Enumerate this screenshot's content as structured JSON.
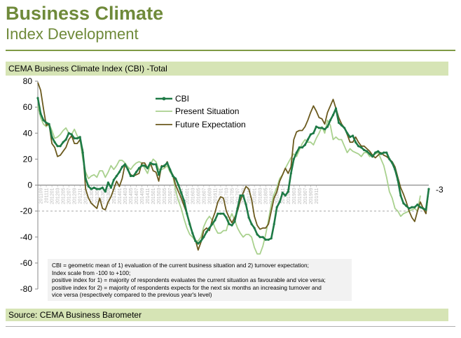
{
  "header": {
    "title": "Business Climate",
    "subtitle": "Index Development"
  },
  "chart_label": "CEMA Business Climate Index (CBI) -Total",
  "source": "Source: CEMA Business Barometer",
  "note_lines": [
    "CBI = geometric mean of 1) evaluation of the current business situation and 2) turnover expectation;",
    "Index scale from -100 to +100;",
    "positive index for 1) = majority of respondents evaluates the current situation as favourable and vice versa;",
    "positive index for 2) = majority of respondents expects for the next six months an increasing turnover and",
    "vice versa (respectively compared to the previous year's level)"
  ],
  "colors": {
    "cbi": "#1e7a46",
    "present": "#a9d18e",
    "future": "#6b5a1e",
    "accent": "#6f8a3a"
  },
  "chart_data": {
    "type": "line",
    "title": "CEMA Business Climate Index (CBI) -Total",
    "xlabel": "",
    "ylabel": "",
    "ylim": [
      -80,
      80
    ],
    "yticks": [
      80,
      60,
      40,
      20,
      0,
      -20,
      -40,
      -60,
      -80
    ],
    "legend": "top-left",
    "last_value_label": "-3",
    "x_tick_labels": [
      "201109",
      "201111",
      "201201",
      "201203",
      "201205",
      "201207",
      "201209",
      "201211",
      "201301",
      "201303",
      "201305",
      "201307",
      "201309",
      "201311",
      "201401",
      "201403",
      "201405",
      "201407",
      "201409",
      "201411",
      "201501",
      "201503",
      "201505",
      "201507",
      "201509",
      "201511",
      "201601",
      "201603",
      "201605",
      "201607",
      "201609",
      "201611",
      "201701",
      "201703",
      "201705",
      "201707",
      "201709",
      "201711",
      "201801",
      "201803",
      "201805",
      "201807",
      "201809",
      "201811",
      "201901",
      "201903",
      "201905",
      "201907",
      "201909",
      "201911"
    ],
    "series": [
      {
        "name": "CBI",
        "values": [
          67,
          55,
          50,
          48,
          47,
          37,
          33,
          30,
          30,
          33,
          35,
          40,
          39,
          36,
          36,
          37,
          25,
          5,
          -1,
          -3,
          -2,
          -3,
          -3,
          -2,
          -5,
          2,
          -2,
          4,
          7,
          10,
          14,
          16,
          12,
          7,
          7,
          10,
          13,
          15,
          15,
          13,
          17,
          16,
          16,
          8,
          14,
          15,
          17,
          12,
          7,
          5,
          0,
          -6,
          -12,
          -22,
          -30,
          -37,
          -43,
          -45,
          -43,
          -40,
          -36,
          -33,
          -30,
          -27,
          -22,
          -22,
          -22,
          -25,
          -30,
          -31,
          -28,
          -18,
          -8,
          -8,
          -15,
          -25,
          -30,
          -33,
          -38,
          -40,
          -40,
          -42,
          -42,
          -41,
          -30,
          -17,
          -13,
          -6,
          -8,
          -5,
          9,
          20,
          25,
          29,
          29,
          31,
          35,
          39,
          40,
          45,
          44,
          44,
          43,
          45,
          50,
          54,
          59,
          48,
          46,
          44,
          40,
          37,
          38,
          33,
          30,
          29,
          27,
          26,
          24,
          22,
          25,
          26,
          24,
          25,
          25,
          20,
          17,
          12,
          4,
          -8,
          -14,
          -16,
          -18,
          -17,
          -17,
          -15,
          -17,
          -18,
          -19,
          -3
        ]
      },
      {
        "name": "Present Situation",
        "values": [
          61,
          52,
          47,
          45,
          47,
          42,
          36,
          37,
          39,
          42,
          44,
          40,
          39,
          43,
          38,
          35,
          20,
          10,
          5,
          7,
          8,
          6,
          11,
          11,
          6,
          10,
          15,
          12,
          15,
          19,
          19,
          17,
          14,
          12,
          15,
          17,
          18,
          17,
          13,
          9,
          16,
          20,
          18,
          12,
          12,
          13,
          15,
          10,
          7,
          -4,
          -12,
          -18,
          -26,
          -33,
          -38,
          -40,
          -43,
          -43,
          -40,
          -32,
          -27,
          -24,
          -27,
          -33,
          -37,
          -37,
          -35,
          -35,
          -27,
          -22,
          -27,
          -33,
          -37,
          -40,
          -38,
          -38,
          -40,
          -48,
          -53,
          -53,
          -47,
          -38,
          -27,
          -15,
          -7,
          -2,
          5,
          8,
          13,
          17,
          21,
          24,
          22,
          27,
          32,
          35,
          33,
          33,
          31,
          36,
          40,
          45,
          40,
          50,
          46,
          35,
          37,
          35,
          35,
          30,
          25,
          28,
          26,
          25,
          24,
          22,
          25,
          25,
          22,
          23,
          24,
          25,
          20,
          15,
          6,
          -5,
          -10,
          -18,
          -20,
          -24,
          -22,
          -21,
          -20,
          -19,
          -18,
          -20,
          -8
        ]
      },
      {
        "name": "Future Expectation",
        "values": [
          79,
          73,
          59,
          46,
          47,
          32,
          29,
          22,
          23,
          26,
          29,
          35,
          38,
          32,
          32,
          35,
          27,
          -3,
          -10,
          -14,
          -16,
          -18,
          -10,
          -18,
          -19,
          -13,
          -9,
          -3,
          3,
          -1,
          5,
          16,
          12,
          8,
          7,
          8,
          9,
          17,
          17,
          13,
          17,
          11,
          10,
          3,
          15,
          14,
          18,
          11,
          8,
          0,
          -5,
          -10,
          -16,
          -22,
          -29,
          -37,
          -42,
          -50,
          -44,
          -35,
          -33,
          -35,
          -27,
          -21,
          -13,
          -9,
          -10,
          -20,
          -25,
          -29,
          -25,
          -20,
          -12,
          -6,
          -1,
          -3,
          -11,
          -24,
          -31,
          -34,
          -33,
          -33,
          -30,
          -20,
          -10,
          -5,
          3,
          8,
          13,
          9,
          14,
          35,
          41,
          42,
          42,
          45,
          50,
          56,
          61,
          57,
          52,
          51,
          47,
          56,
          61,
          66,
          59,
          52,
          47,
          44,
          39,
          33,
          33,
          37,
          33,
          30,
          30,
          28,
          26,
          23,
          21,
          23,
          25,
          23,
          22,
          20,
          18,
          14,
          6,
          -2,
          -7,
          -13,
          -20,
          -25,
          -28,
          -20,
          -13,
          -18,
          -22,
          -3
        ]
      }
    ]
  }
}
